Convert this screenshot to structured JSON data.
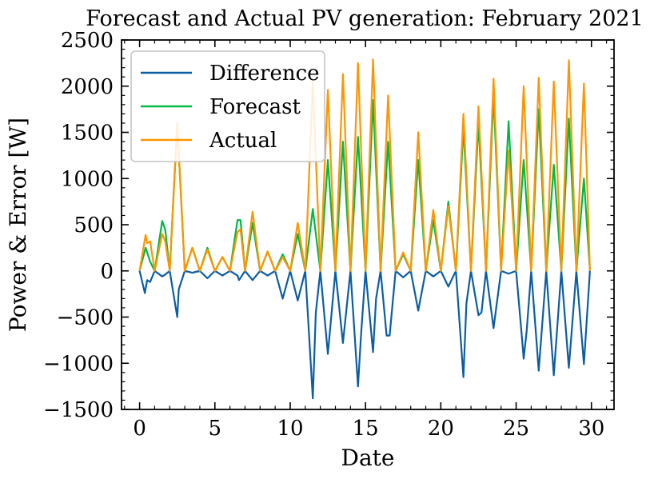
{
  "chart_data": {
    "type": "line",
    "title": "Forecast and Actual PV generation: February 2021",
    "xlabel": "Date",
    "ylabel": "Power & Error [W]",
    "xlim": [
      -1.2,
      31.5
    ],
    "ylim": [
      -1500,
      2500
    ],
    "x_ticks": [
      0,
      5,
      10,
      15,
      20,
      25,
      30
    ],
    "x_tick_labels": [
      "0",
      "5",
      "10",
      "15",
      "20",
      "25",
      "30"
    ],
    "y_ticks": [
      -1500,
      -1000,
      -500,
      0,
      500,
      1000,
      1500,
      2000,
      2500
    ],
    "y_tick_labels": [
      "−1500",
      "−1000",
      "−500",
      "0",
      "500",
      "1000",
      "1500",
      "2000",
      "2500"
    ],
    "grid": false,
    "legend_position": "top-left",
    "series": [
      {
        "name": "Difference",
        "color": "#0C5DA5",
        "x": [
          0,
          0.35,
          0.5,
          0.7,
          1,
          1.5,
          1.7,
          2,
          2.5,
          2.6,
          3,
          3.5,
          4,
          4.5,
          5,
          5.5,
          6,
          6.5,
          6.6,
          7,
          7.5,
          8,
          8.5,
          9,
          9.5,
          10,
          10.5,
          11,
          11.5,
          11.7,
          12,
          12.5,
          13,
          13.5,
          14,
          14.5,
          14.7,
          15,
          15.5,
          15.7,
          16,
          16.4,
          16.6,
          17,
          17.5,
          18,
          18.5,
          19,
          19.5,
          20,
          20.5,
          21,
          21.5,
          21.7,
          22,
          22.5,
          22.7,
          23,
          23.5,
          24,
          24.5,
          25,
          25.4,
          25.5,
          25.7,
          26,
          26.5,
          27,
          27.5,
          28,
          28.5,
          29,
          29.5,
          29.9
        ],
        "y": [
          0,
          -240,
          -100,
          -120,
          0,
          -60,
          -40,
          0,
          -500,
          -200,
          0,
          -20,
          0,
          -80,
          0,
          -50,
          0,
          -50,
          -100,
          0,
          -100,
          0,
          -50,
          0,
          -300,
          0,
          -320,
          0,
          -1380,
          -450,
          0,
          -900,
          0,
          -780,
          0,
          -1250,
          -700,
          0,
          -880,
          -300,
          0,
          -700,
          -700,
          0,
          -70,
          0,
          -430,
          0,
          -60,
          0,
          -170,
          0,
          -1150,
          -350,
          0,
          -480,
          -450,
          0,
          -620,
          0,
          -30,
          0,
          -750,
          -950,
          -650,
          0,
          -1080,
          0,
          -1130,
          0,
          -1050,
          0,
          -1010,
          0
        ]
      },
      {
        "name": "Forecast",
        "color": "#00B945",
        "x": [
          0,
          0.4,
          0.7,
          1,
          1.5,
          1.7,
          2,
          2.5,
          3,
          3.5,
          4,
          4.5,
          5,
          5.5,
          6,
          6.5,
          6.7,
          7,
          7.5,
          8,
          8.5,
          9,
          9.5,
          10,
          10.5,
          11,
          11.5,
          12,
          12.5,
          13,
          13.5,
          14,
          14.5,
          15,
          15.5,
          16,
          16.5,
          17,
          17.5,
          18,
          18.5,
          19,
          19.5,
          20,
          20.5,
          21,
          21.5,
          22,
          22.5,
          23,
          23.5,
          24,
          24.5,
          25,
          25.5,
          26,
          26.5,
          27,
          27.5,
          28,
          28.5,
          29,
          29.5,
          29.9
        ],
        "y": [
          0,
          250,
          100,
          0,
          540,
          450,
          0,
          1600,
          0,
          250,
          0,
          250,
          0,
          150,
          0,
          550,
          550,
          0,
          520,
          0,
          210,
          0,
          180,
          0,
          400,
          0,
          670,
          0,
          1200,
          0,
          1400,
          0,
          1450,
          0,
          1850,
          0,
          1400,
          0,
          180,
          0,
          1200,
          0,
          550,
          0,
          750,
          0,
          1550,
          0,
          1600,
          0,
          1900,
          0,
          1620,
          0,
          1200,
          0,
          1750,
          0,
          1150,
          0,
          1650,
          0,
          1000,
          0
        ]
      },
      {
        "name": "Actual",
        "color": "#FF9500",
        "x": [
          0,
          0.4,
          0.5,
          0.7,
          1,
          1.5,
          1.7,
          2,
          2.5,
          3,
          3.5,
          4,
          4.5,
          5,
          5.5,
          6,
          6.5,
          6.7,
          7,
          7.5,
          8,
          8.5,
          9,
          9.5,
          10,
          10.5,
          11,
          11.5,
          12,
          12.5,
          13,
          13.5,
          14,
          14.5,
          15,
          15.5,
          16,
          16.5,
          17,
          17.5,
          18,
          18.5,
          19,
          19.5,
          20,
          20.5,
          21,
          21.5,
          22,
          22.5,
          23,
          23.5,
          24,
          24.5,
          25,
          25.5,
          26,
          26.5,
          27,
          27.5,
          28,
          28.5,
          29,
          29.5,
          29.9
        ],
        "y": [
          0,
          390,
          300,
          320,
          0,
          400,
          320,
          0,
          1600,
          0,
          250,
          0,
          230,
          0,
          150,
          0,
          420,
          450,
          0,
          640,
          0,
          210,
          0,
          150,
          0,
          520,
          0,
          2050,
          0,
          1960,
          0,
          2130,
          0,
          2250,
          0,
          2290,
          0,
          1900,
          0,
          200,
          0,
          1500,
          0,
          660,
          0,
          700,
          0,
          1700,
          0,
          1780,
          0,
          2080,
          0,
          1300,
          0,
          2000,
          0,
          2090,
          0,
          2050,
          0,
          2280,
          0,
          2030,
          0
        ]
      }
    ]
  }
}
